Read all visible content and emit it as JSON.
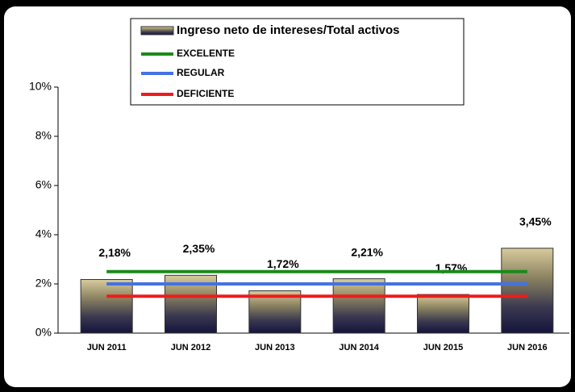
{
  "chart_data": {
    "type": "bar",
    "categories": [
      "JUN 2011",
      "JUN 2012",
      "JUN 2013",
      "JUN 2014",
      "JUN 2015",
      "JUN 2016"
    ],
    "series": [
      {
        "name": "Ingreso neto de intereses/Total activos",
        "type": "bar",
        "color": "#6b6548",
        "values": [
          2.18,
          2.35,
          1.72,
          2.21,
          1.57,
          3.45
        ],
        "value_labels": [
          "2,18%",
          "2,35%",
          "1,72%",
          "2,21%",
          "1,57%",
          "3,45%"
        ]
      },
      {
        "name": "EXCELENTE",
        "type": "line",
        "color": "#1a8a1a",
        "values": [
          2.5,
          2.5,
          2.5,
          2.5,
          2.5,
          2.5
        ]
      },
      {
        "name": "REGULAR",
        "type": "line",
        "color": "#4472e4",
        "values": [
          2.0,
          2.0,
          2.0,
          2.0,
          2.0,
          2.0
        ]
      },
      {
        "name": "DEFICIENTE",
        "type": "line",
        "color": "#ee1c1c",
        "values": [
          1.5,
          1.5,
          1.5,
          1.5,
          1.5,
          1.5
        ]
      }
    ],
    "ylim": [
      0,
      10
    ],
    "yticks": [
      {
        "value": 0,
        "label": "0%"
      },
      {
        "value": 2,
        "label": "2%"
      },
      {
        "value": 4,
        "label": "4%"
      },
      {
        "value": 6,
        "label": "6%"
      },
      {
        "value": 8,
        "label": "8%"
      },
      {
        "value": 10,
        "label": "10%"
      }
    ]
  }
}
